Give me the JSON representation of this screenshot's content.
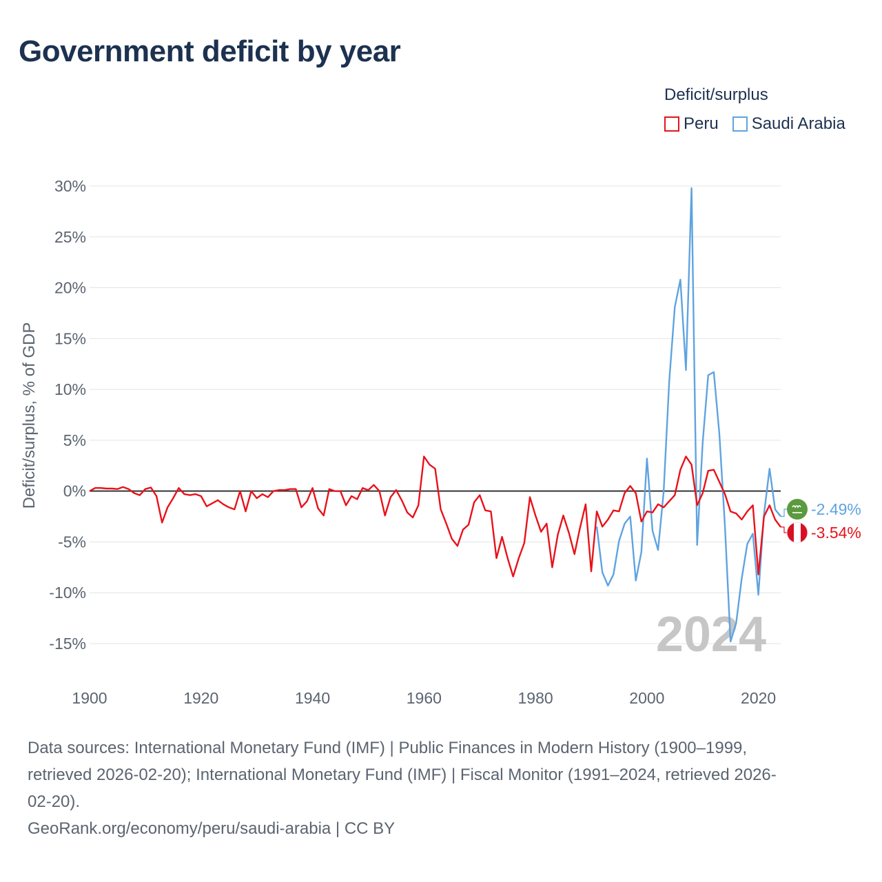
{
  "page_title": "Government deficit by year",
  "legend": {
    "title": "Deficit/surplus",
    "items": [
      {
        "name": "Peru",
        "color": "#e8121a"
      },
      {
        "name": "Saudi Arabia",
        "color": "#5fa3e0"
      }
    ]
  },
  "footer": {
    "line1": "Data sources: International Monetary Fund (IMF) | Public Finances in Modern History (1900–1999,",
    "line2": "retrieved 2026-02-20); International Monetary Fund (IMF) | Fiscal Monitor (1991–2024, retrieved 2026-",
    "line3": "02-20).",
    "credit": "GeoRank.org/economy/peru/saudi-arabia | CC BY"
  },
  "chart_data": {
    "type": "line",
    "title": "Government deficit by year",
    "xlabel": "",
    "ylabel": "Deficit/surplus, % of GDP",
    "xlim": [
      1900,
      2024
    ],
    "ylim": [
      -15,
      30
    ],
    "x_ticks": [
      1900,
      1920,
      1940,
      1960,
      1980,
      2000,
      2020
    ],
    "y_ticks": [
      {
        "value": 30,
        "label": "30%"
      },
      {
        "value": 25,
        "label": "25%"
      },
      {
        "value": 20,
        "label": "20%"
      },
      {
        "value": 15,
        "label": "15%"
      },
      {
        "value": 10,
        "label": "10%"
      },
      {
        "value": 5,
        "label": "5%"
      },
      {
        "value": 0,
        "label": "0%"
      },
      {
        "value": -5,
        "label": "-5%"
      },
      {
        "value": -10,
        "label": "-10%"
      },
      {
        "value": -15,
        "label": "-15%"
      }
    ],
    "year_watermark": "2024",
    "series": [
      {
        "name": "Peru",
        "color": "#e8121a",
        "end_label": "-3.54%",
        "x": [
          1900,
          1901,
          1902,
          1903,
          1904,
          1905,
          1906,
          1907,
          1908,
          1909,
          1910,
          1911,
          1912,
          1913,
          1914,
          1915,
          1916,
          1917,
          1918,
          1919,
          1920,
          1921,
          1922,
          1923,
          1924,
          1925,
          1926,
          1927,
          1928,
          1929,
          1930,
          1931,
          1932,
          1933,
          1934,
          1935,
          1936,
          1937,
          1938,
          1939,
          1940,
          1941,
          1942,
          1943,
          1944,
          1945,
          1946,
          1947,
          1948,
          1949,
          1950,
          1951,
          1952,
          1953,
          1954,
          1955,
          1956,
          1957,
          1958,
          1959,
          1960,
          1961,
          1962,
          1963,
          1964,
          1965,
          1966,
          1967,
          1968,
          1969,
          1970,
          1971,
          1972,
          1973,
          1974,
          1975,
          1976,
          1977,
          1978,
          1979,
          1980,
          1981,
          1982,
          1983,
          1984,
          1985,
          1986,
          1987,
          1988,
          1989,
          1990,
          1991,
          1992,
          1993,
          1994,
          1995,
          1996,
          1997,
          1998,
          1999,
          2000,
          2001,
          2002,
          2003,
          2004,
          2005,
          2006,
          2007,
          2008,
          2009,
          2010,
          2011,
          2012,
          2013,
          2014,
          2015,
          2016,
          2017,
          2018,
          2019,
          2020,
          2021,
          2022,
          2023,
          2024
        ],
        "values": [
          0.0,
          0.3,
          0.3,
          0.25,
          0.25,
          0.2,
          0.4,
          0.2,
          -0.2,
          -0.4,
          0.2,
          0.35,
          -0.5,
          -3.1,
          -1.6,
          -0.7,
          0.3,
          -0.3,
          -0.4,
          -0.3,
          -0.5,
          -1.5,
          -1.2,
          -0.9,
          -1.3,
          -1.6,
          -1.8,
          0.0,
          -2.0,
          0.0,
          -0.7,
          -0.3,
          -0.6,
          0.0,
          0.1,
          0.1,
          0.2,
          0.2,
          -1.6,
          -1.0,
          0.3,
          -1.7,
          -2.4,
          0.2,
          0.0,
          0.0,
          -1.4,
          -0.5,
          -0.8,
          0.3,
          0.1,
          0.6,
          0.0,
          -2.4,
          -0.6,
          0.1,
          -0.9,
          -2.1,
          -2.6,
          -1.4,
          3.4,
          2.6,
          2.2,
          -1.8,
          -3.2,
          -4.7,
          -5.4,
          -3.8,
          -3.3,
          -1.1,
          -0.4,
          -1.9,
          -2.0,
          -6.6,
          -4.5,
          -6.6,
          -8.4,
          -6.6,
          -5.1,
          -0.6,
          -2.4,
          -4.0,
          -3.2,
          -7.5,
          -4.3,
          -2.4,
          -4.1,
          -6.2,
          -3.6,
          -1.3,
          -7.9,
          -2.0,
          -3.5,
          -2.8,
          -1.9,
          -2.0,
          -0.2,
          0.5,
          -0.2,
          -3.0,
          -2.0,
          -2.1,
          -1.3,
          -1.6,
          -1.0,
          -0.4,
          2.1,
          3.4,
          2.6,
          -1.4,
          -0.2,
          2.0,
          2.1,
          0.9,
          -0.3,
          -2.0,
          -2.2,
          -2.8,
          -2.0,
          -1.4,
          -8.2,
          -2.5,
          -1.4,
          -2.8,
          -3.54
        ]
      },
      {
        "name": "Saudi Arabia",
        "color": "#5fa3e0",
        "end_label": "-2.49%",
        "x": [
          1991,
          1992,
          1993,
          1994,
          1995,
          1996,
          1997,
          1998,
          1999,
          2000,
          2001,
          2002,
          2003,
          2004,
          2005,
          2006,
          2007,
          2008,
          2009,
          2010,
          2011,
          2012,
          2013,
          2014,
          2015,
          2016,
          2017,
          2018,
          2019,
          2020,
          2021,
          2022,
          2023,
          2024
        ],
        "values": [
          -3.5,
          -8.0,
          -9.3,
          -8.2,
          -4.9,
          -3.2,
          -2.5,
          -8.8,
          -6.0,
          3.2,
          -3.9,
          -5.8,
          -0.1,
          10.8,
          18.1,
          20.8,
          11.9,
          29.8,
          -5.3,
          4.8,
          11.4,
          11.7,
          5.6,
          -3.5,
          -14.8,
          -13.0,
          -8.6,
          -5.2,
          -4.2,
          -10.2,
          -2.3,
          2.2,
          -1.8,
          -2.49
        ]
      }
    ]
  }
}
